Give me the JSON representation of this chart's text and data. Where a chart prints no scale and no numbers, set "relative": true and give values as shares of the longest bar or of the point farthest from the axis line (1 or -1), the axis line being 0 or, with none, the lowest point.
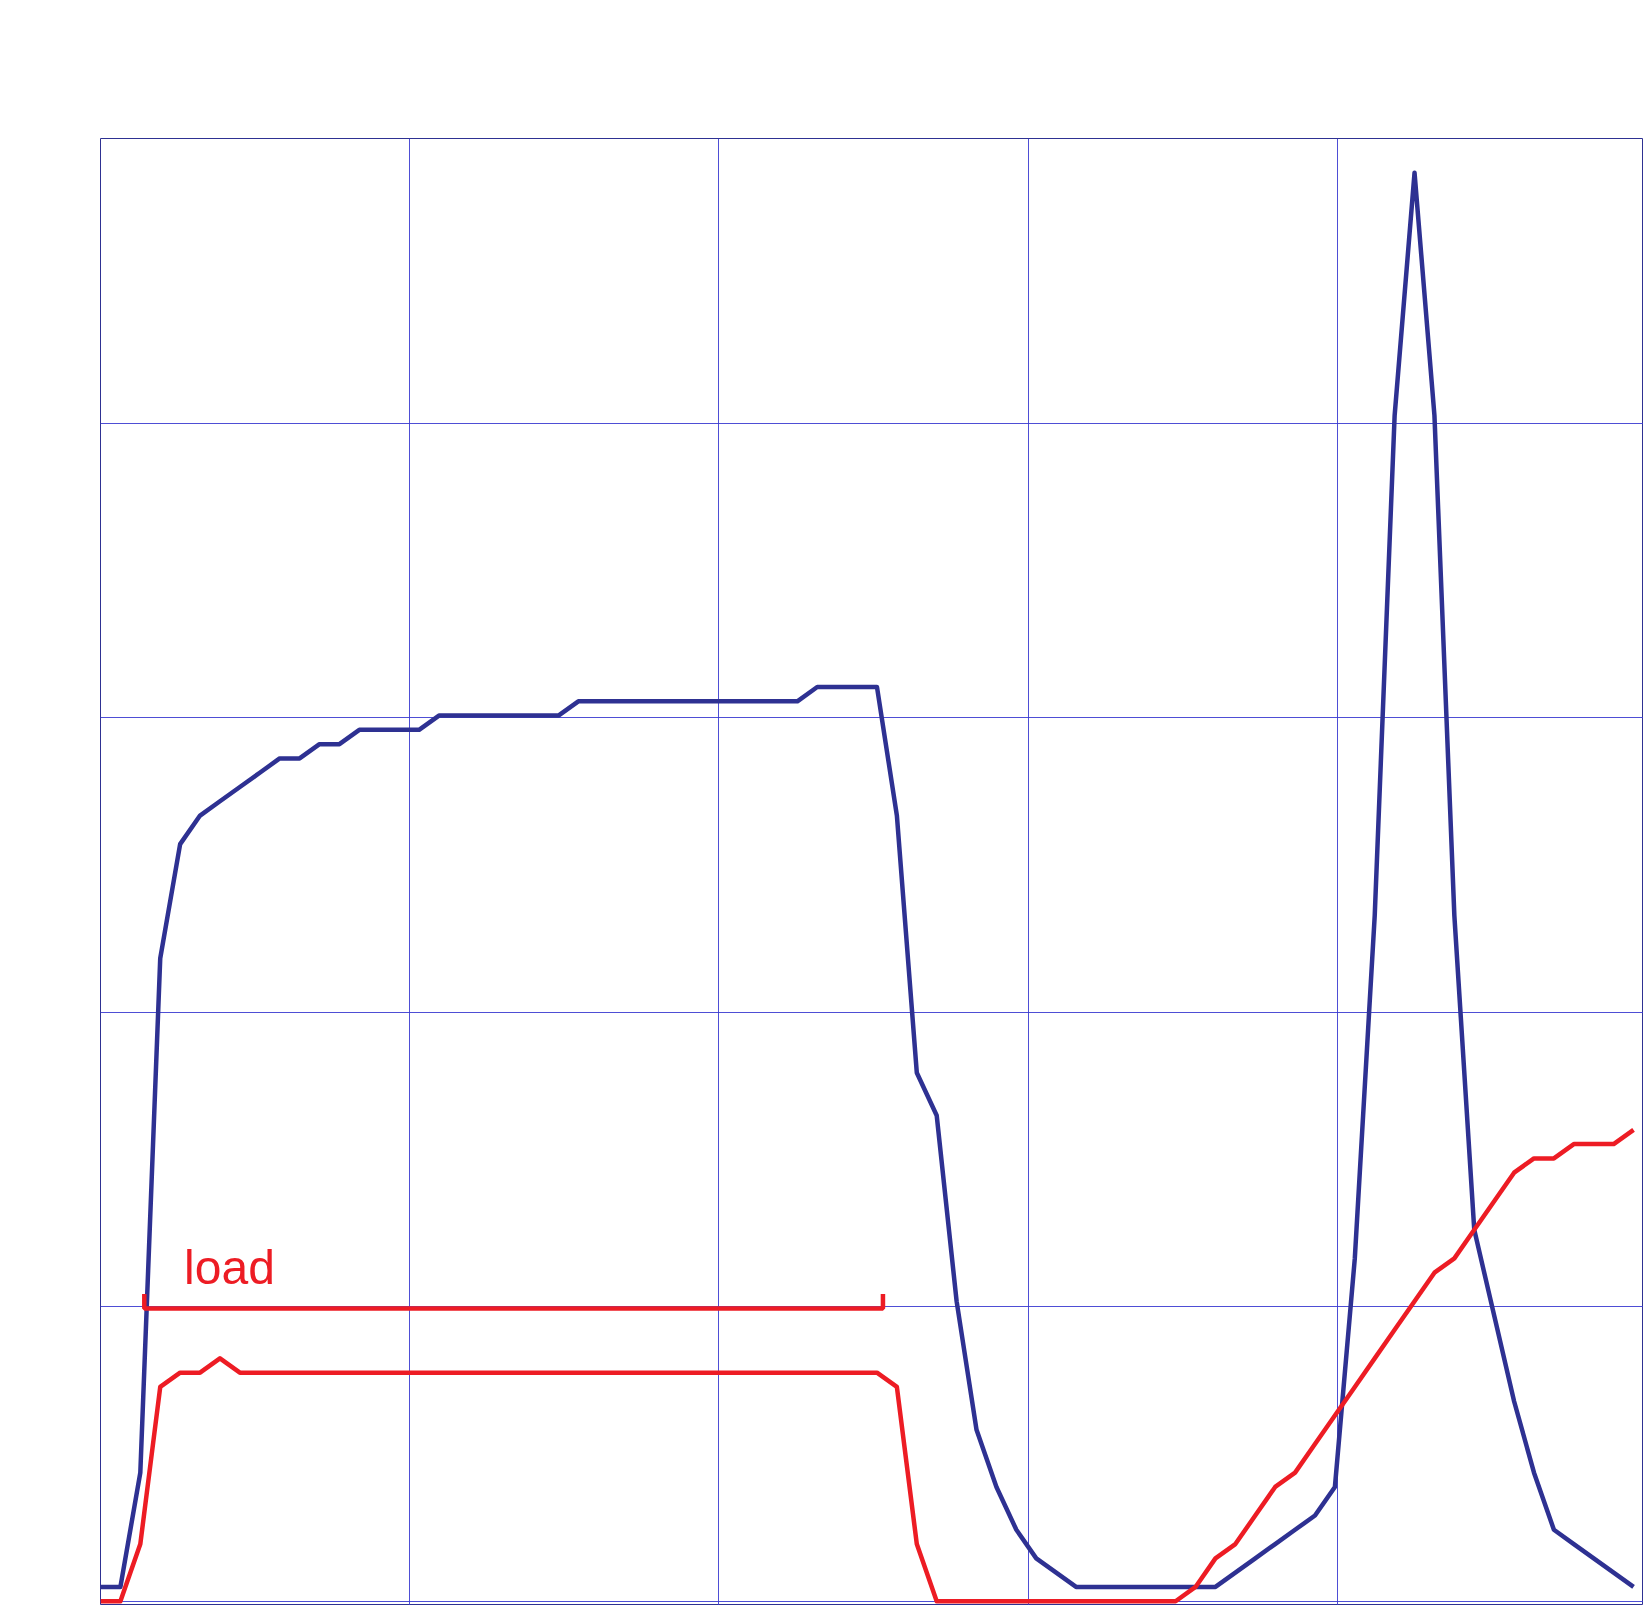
{
  "chart_data": {
    "type": "line",
    "relative": true,
    "grid": true,
    "marker": "none",
    "line_style": "solid",
    "categories": [
      null,
      null,
      null,
      null,
      null,
      null,
      null,
      null,
      null,
      null,
      null,
      null,
      null,
      null,
      null,
      null,
      null,
      null,
      null,
      null,
      null,
      null,
      null,
      null,
      null,
      null,
      null,
      null,
      null,
      null,
      null,
      null,
      null,
      null,
      null,
      null,
      null,
      null,
      null,
      null,
      null,
      null,
      null,
      null,
      null,
      null,
      null,
      null,
      null,
      null,
      null,
      null,
      null,
      null,
      null,
      null,
      null,
      null,
      null,
      null,
      null,
      null,
      null,
      null,
      null,
      null,
      null,
      null,
      null,
      null,
      null,
      null,
      null,
      null,
      null,
      null,
      null,
      null
    ],
    "series": [
      {
        "color": "#2e3192",
        "values": [
          0.01,
          0.01,
          0.09,
          0.45,
          0.53,
          0.55,
          0.56,
          0.57,
          0.58,
          0.59,
          0.59,
          0.6,
          0.6,
          0.61,
          0.61,
          0.61,
          0.61,
          0.62,
          0.62,
          0.62,
          0.62,
          0.62,
          0.62,
          0.62,
          0.63,
          0.63,
          0.63,
          0.63,
          0.63,
          0.63,
          0.63,
          0.63,
          0.63,
          0.63,
          0.63,
          0.63,
          0.64,
          0.64,
          0.64,
          0.64,
          0.55,
          0.37,
          0.34,
          0.21,
          0.12,
          0.08,
          0.05,
          0.03,
          0.02,
          0.01,
          0.01,
          0.01,
          0.01,
          0.01,
          0.01,
          0.01,
          0.01,
          0.02,
          0.03,
          0.04,
          0.05,
          0.06,
          0.08,
          0.24,
          0.48,
          0.83,
          1.0,
          0.83,
          0.48,
          0.26,
          0.2,
          0.14,
          0.09,
          0.05,
          0.04,
          0.03,
          0.02,
          0.01
        ]
      },
      {
        "color": "#ed1c24",
        "values": [
          0,
          0,
          0.04,
          0.15,
          0.16,
          0.16,
          0.17,
          0.16,
          0.16,
          0.16,
          0.16,
          0.16,
          0.16,
          0.16,
          0.16,
          0.16,
          0.16,
          0.16,
          0.16,
          0.16,
          0.16,
          0.16,
          0.16,
          0.16,
          0.16,
          0.16,
          0.16,
          0.16,
          0.16,
          0.16,
          0.16,
          0.16,
          0.16,
          0.16,
          0.16,
          0.16,
          0.16,
          0.16,
          0.16,
          0.16,
          0.15,
          0.04,
          0,
          0,
          0,
          0,
          0,
          0,
          0,
          0,
          0,
          0,
          0,
          0,
          0.0,
          0.01,
          0.03,
          0.04,
          0.06,
          0.08,
          0.09,
          0.11,
          0.13,
          0.15,
          0.17,
          0.19,
          0.21,
          0.23,
          0.24,
          0.26,
          0.28,
          0.3,
          0.31,
          0.31,
          0.32,
          0.32,
          0.32,
          0.33
        ]
      }
    ],
    "annotations": [
      "load"
    ]
  }
}
